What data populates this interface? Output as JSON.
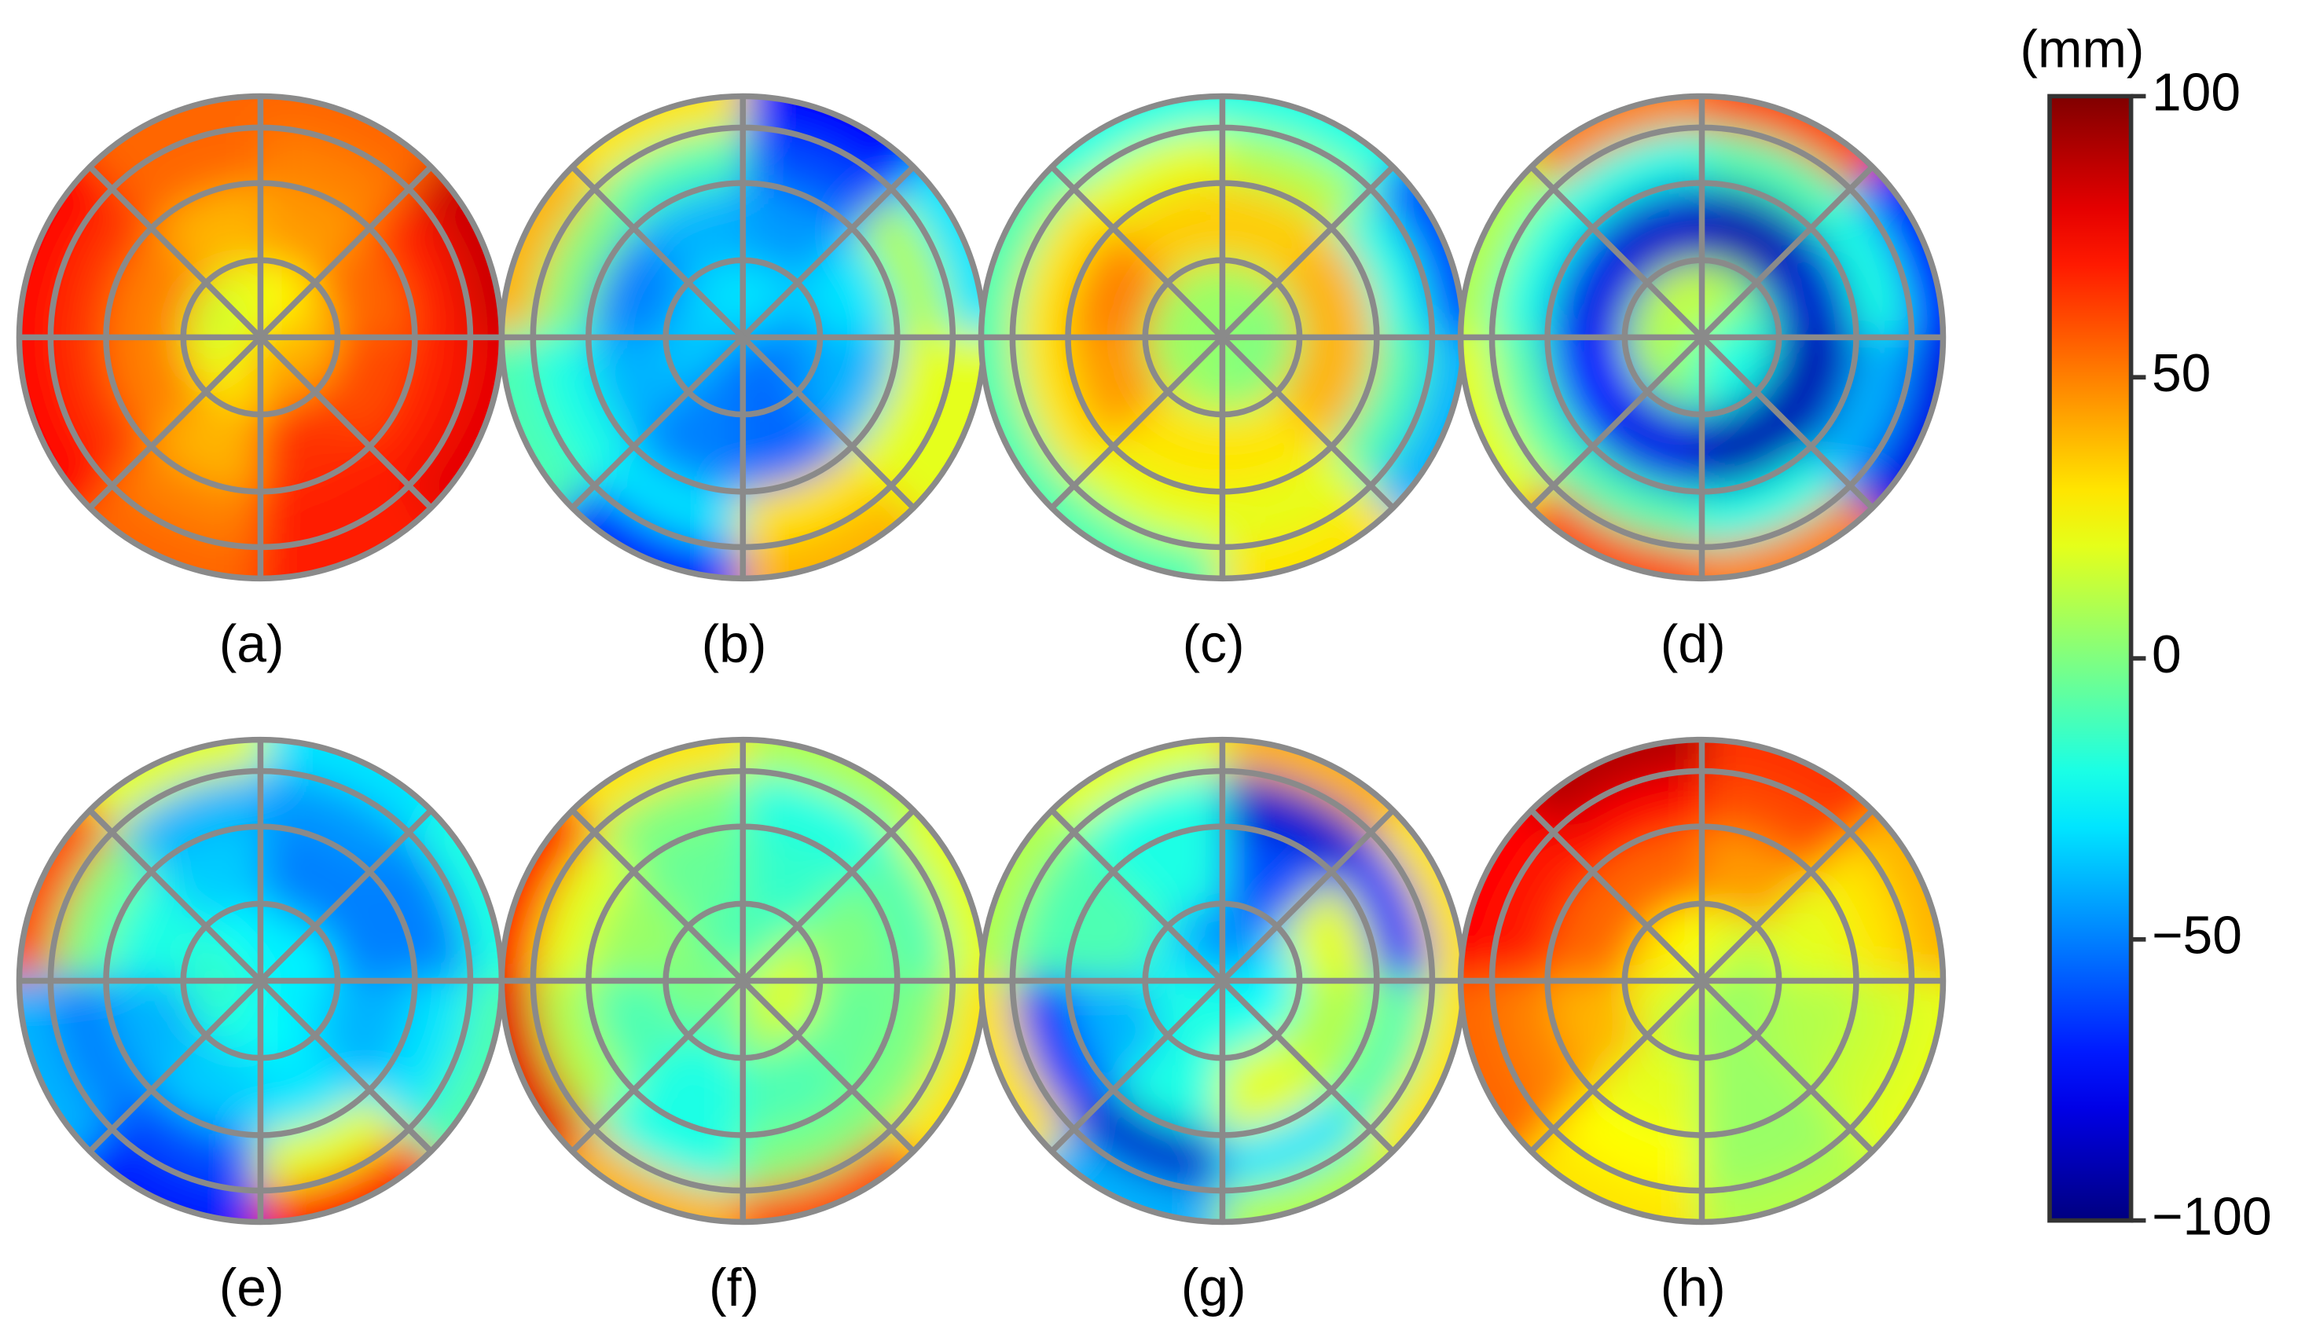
{
  "chart_data": {
    "type": "polar_heatmap",
    "panels": [
      {
        "label": "(a)",
        "values": [
          [
            35,
            25,
            20,
            15,
            20,
            30,
            45,
            40
          ],
          [
            55,
            45,
            40,
            50,
            50,
            40,
            65,
            60
          ],
          [
            70,
            50,
            55,
            65,
            65,
            50,
            70,
            70
          ],
          [
            85,
            55,
            55,
            75,
            75,
            55,
            70,
            80
          ]
        ]
      },
      {
        "label": "(b)",
        "values": [
          [
            -40,
            -30,
            -30,
            -35,
            -35,
            -50,
            -55,
            -50
          ],
          [
            -30,
            -45,
            -40,
            -50,
            -40,
            -50,
            -55,
            -40
          ],
          [
            10,
            -60,
            -10,
            0,
            -20,
            -30,
            30,
            20
          ],
          [
            -30,
            -75,
            30,
            40,
            -10,
            -70,
            40,
            20
          ]
        ]
      },
      {
        "label": "(c)",
        "values": [
          [
            0,
            5,
            5,
            5,
            5,
            5,
            0,
            0
          ],
          [
            40,
            35,
            35,
            50,
            45,
            30,
            30,
            40
          ],
          [
            -20,
            10,
            20,
            30,
            30,
            20,
            20,
            -10
          ],
          [
            -60,
            -20,
            -20,
            -10,
            -10,
            -10,
            30,
            -40
          ]
        ]
      },
      {
        "label": "(d)",
        "values": [
          [
            -10,
            10,
            15,
            10,
            10,
            0,
            -20,
            -20
          ],
          [
            -85,
            -90,
            -85,
            -80,
            -75,
            -80,
            -90,
            -90
          ],
          [
            -20,
            -10,
            -20,
            -20,
            -10,
            -10,
            -20,
            -40
          ],
          [
            -70,
            60,
            50,
            10,
            20,
            60,
            50,
            -80
          ]
        ]
      },
      {
        "label": "(e)",
        "values": [
          [
            -25,
            -30,
            -25,
            -15,
            -15,
            -20,
            -25,
            -30
          ],
          [
            -50,
            -50,
            -35,
            -20,
            -40,
            -35,
            -30,
            -40
          ],
          [
            -50,
            -45,
            -40,
            0,
            -50,
            -60,
            20,
            -30
          ],
          [
            -20,
            -30,
            20,
            60,
            -40,
            -70,
            70,
            -10
          ]
        ]
      },
      {
        "label": "(f)",
        "values": [
          [
            15,
            -10,
            -10,
            0,
            0,
            -10,
            10,
            20
          ],
          [
            0,
            -15,
            -5,
            5,
            -10,
            -20,
            -10,
            -5
          ],
          [
            -10,
            -20,
            0,
            20,
            10,
            -20,
            0,
            0
          ],
          [
            20,
            10,
            30,
            70,
            80,
            40,
            60,
            30
          ]
        ]
      },
      {
        "label": "(g)",
        "values": [
          [
            -30,
            -50,
            -45,
            -30,
            -20,
            -20,
            -20,
            -25
          ],
          [
            20,
            -60,
            -20,
            -10,
            -40,
            -20,
            20,
            10
          ],
          [
            -70,
            -85,
            -20,
            -10,
            -70,
            -85,
            -30,
            -10
          ],
          [
            30,
            40,
            20,
            10,
            30,
            -40,
            10,
            30
          ]
        ]
      },
      {
        "label": "(h)",
        "values": [
          [
            10,
            20,
            25,
            30,
            20,
            10,
            5,
            5
          ],
          [
            20,
            45,
            55,
            55,
            40,
            20,
            5,
            10
          ],
          [
            30,
            60,
            75,
            70,
            50,
            25,
            5,
            15
          ],
          [
            40,
            65,
            90,
            75,
            55,
            30,
            10,
            20
          ]
        ]
      }
    ],
    "colorbar": {
      "label": "(mm)",
      "ylim": [
        -100,
        100
      ],
      "yticks": [
        100,
        50,
        0,
        {
          "value": -50,
          "label": "−50"
        },
        {
          "value": -100,
          "label": "−100"
        }
      ]
    }
  }
}
